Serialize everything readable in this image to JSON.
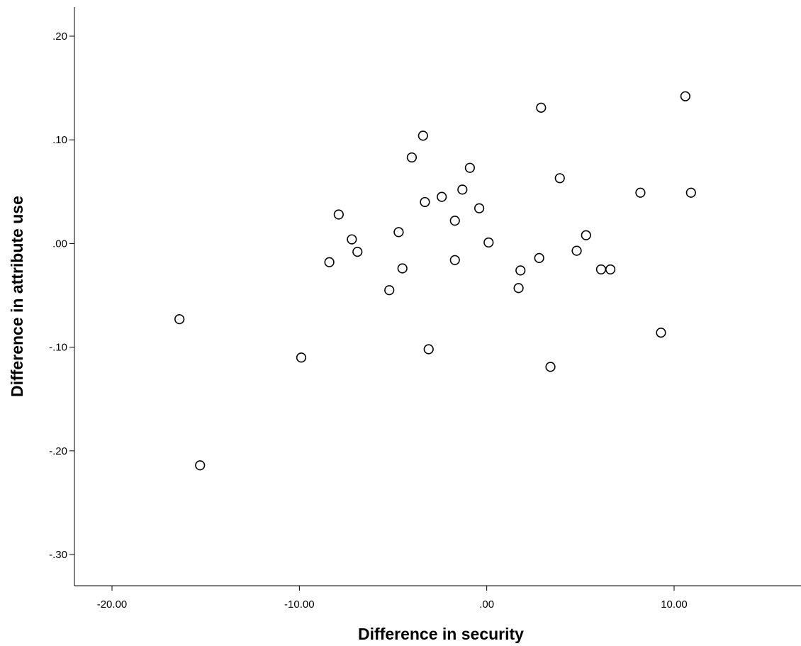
{
  "chart_data": {
    "type": "scatter",
    "title": "",
    "xlabel": "Difference in security",
    "ylabel": "Difference in attribute use",
    "xlim": [
      -22,
      16.5
    ],
    "ylim": [
      -0.33,
      0.228
    ],
    "x_ticks": [
      -20,
      -10,
      0,
      10
    ],
    "x_tick_labels": [
      "-20.00",
      "-10.00",
      ".00",
      "10.00"
    ],
    "y_ticks": [
      0.2,
      0.1,
      0.0,
      -0.1,
      -0.2,
      -0.3
    ],
    "y_tick_labels": [
      ".20",
      ".10",
      ".00",
      "-.10",
      "-.20",
      "-.30"
    ],
    "grid": false,
    "legend": "none",
    "marker": "open-circle",
    "colors": {
      "marker_stroke": "#000000",
      "marker_fill": "#ffffff",
      "axis": "#000000",
      "background": "#ffffff"
    },
    "series": [
      {
        "points": [
          {
            "x": -16.4,
            "y": -0.073
          },
          {
            "x": -15.3,
            "y": -0.214
          },
          {
            "x": -9.9,
            "y": -0.11
          },
          {
            "x": -8.4,
            "y": -0.018
          },
          {
            "x": -7.9,
            "y": 0.028
          },
          {
            "x": -7.2,
            "y": 0.004
          },
          {
            "x": -6.9,
            "y": -0.008
          },
          {
            "x": -5.2,
            "y": -0.045
          },
          {
            "x": -4.7,
            "y": 0.011
          },
          {
            "x": -4.5,
            "y": -0.024
          },
          {
            "x": -4.0,
            "y": 0.083
          },
          {
            "x": -3.4,
            "y": 0.104
          },
          {
            "x": -3.3,
            "y": 0.04
          },
          {
            "x": -3.1,
            "y": -0.102
          },
          {
            "x": -2.4,
            "y": 0.045
          },
          {
            "x": -1.7,
            "y": 0.022
          },
          {
            "x": -1.7,
            "y": -0.016
          },
          {
            "x": -1.3,
            "y": 0.052
          },
          {
            "x": -0.9,
            "y": 0.073
          },
          {
            "x": -0.4,
            "y": 0.034
          },
          {
            "x": 0.1,
            "y": 0.001
          },
          {
            "x": 1.7,
            "y": -0.043
          },
          {
            "x": 1.8,
            "y": -0.026
          },
          {
            "x": 2.8,
            "y": -0.014
          },
          {
            "x": 2.9,
            "y": 0.131
          },
          {
            "x": 3.4,
            "y": -0.119
          },
          {
            "x": 3.9,
            "y": 0.063
          },
          {
            "x": 4.8,
            "y": -0.007
          },
          {
            "x": 5.3,
            "y": 0.008
          },
          {
            "x": 6.1,
            "y": -0.025
          },
          {
            "x": 6.6,
            "y": -0.025
          },
          {
            "x": 8.2,
            "y": 0.049
          },
          {
            "x": 9.3,
            "y": -0.086
          },
          {
            "x": 10.6,
            "y": 0.142
          },
          {
            "x": 10.9,
            "y": 0.049
          }
        ]
      }
    ]
  }
}
